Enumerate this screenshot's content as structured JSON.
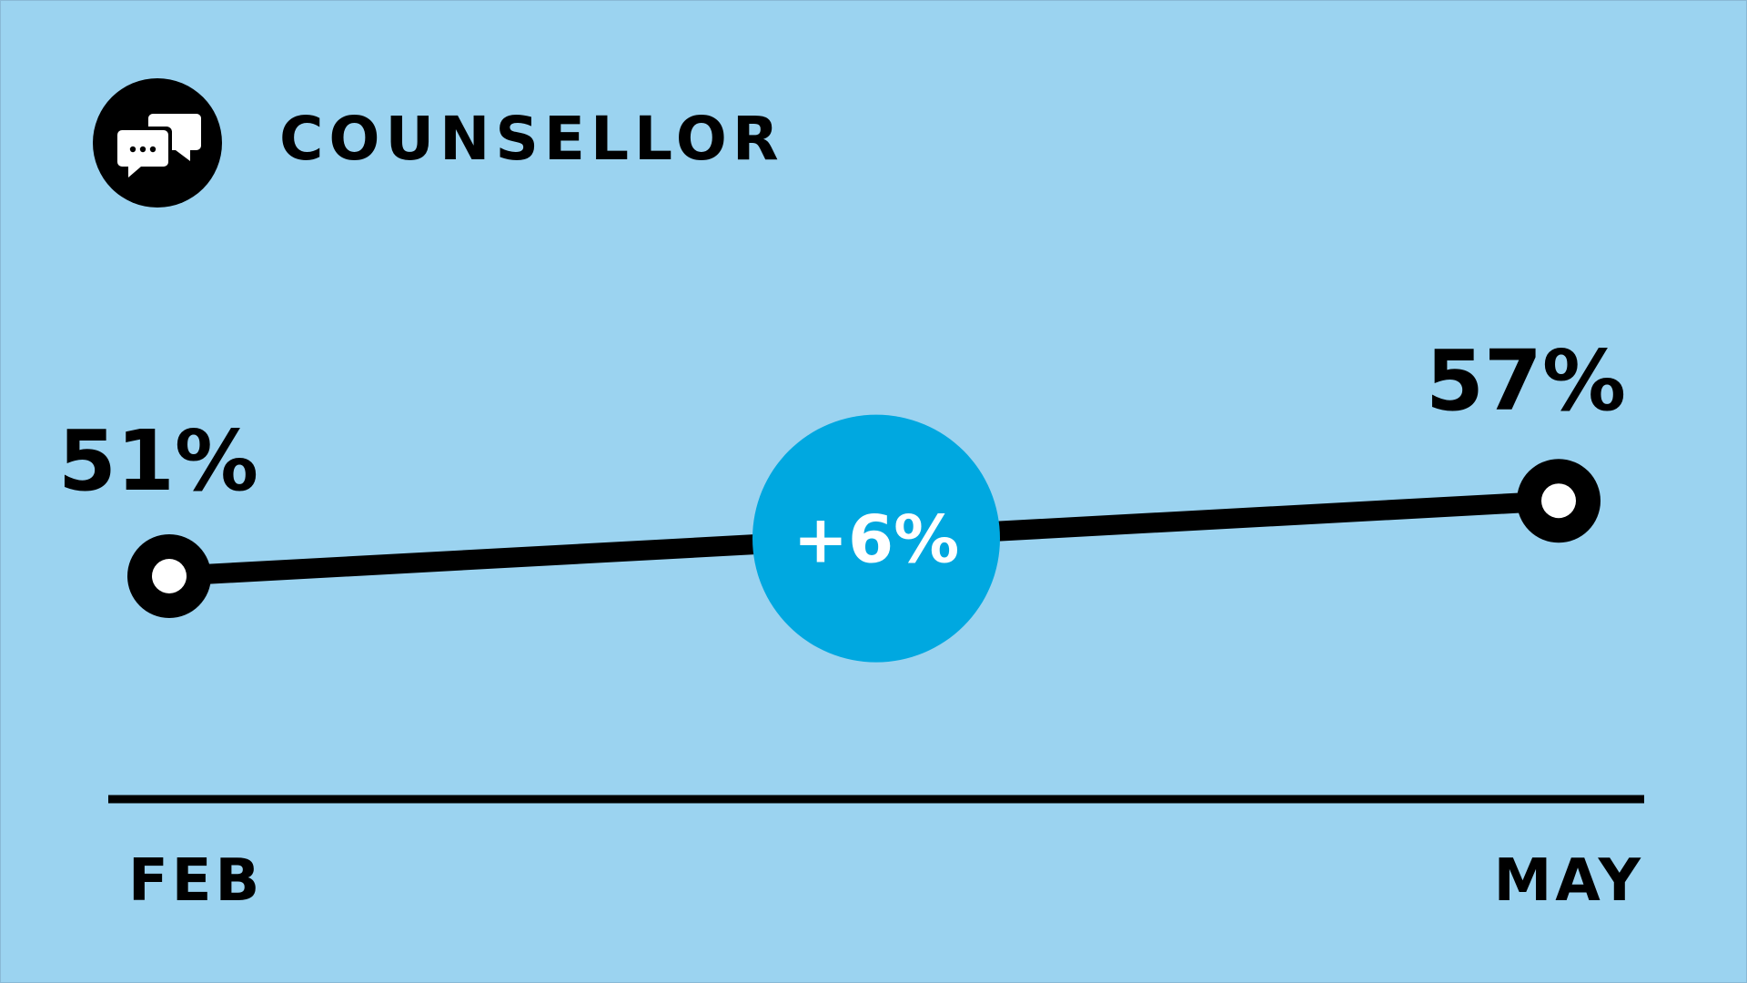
{
  "header": {
    "title": "COUNSELLOR",
    "icon": "chat-bubbles-icon"
  },
  "chart_data": {
    "type": "line",
    "categories": [
      "FEB",
      "MAY"
    ],
    "values": [
      51,
      57
    ],
    "value_labels": [
      "51%",
      "57%"
    ],
    "change_label": "+6%",
    "title": "COUNSELLOR",
    "xlabel": "",
    "ylabel": "",
    "grid": false
  },
  "colors": {
    "background": "#9bd3f0",
    "line": "#000000",
    "accent": "#00a8e0",
    "marker_fill": "#ffffff"
  }
}
